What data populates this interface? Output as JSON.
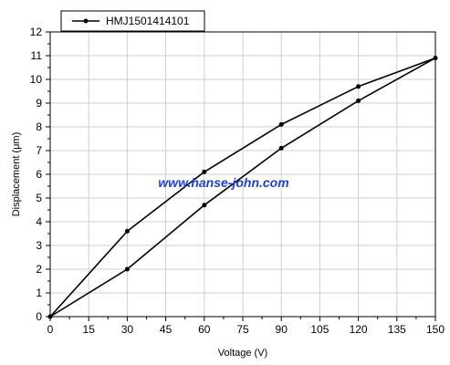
{
  "chart_data": {
    "type": "line",
    "xlabel": "Voltage (V)",
    "ylabel": "Displacement (μm)",
    "xlim": [
      0,
      150
    ],
    "ylim": [
      0,
      12
    ],
    "x_ticks": [
      0,
      15,
      30,
      45,
      60,
      75,
      90,
      105,
      120,
      135,
      150
    ],
    "y_ticks": [
      0,
      1,
      2,
      3,
      4,
      5,
      6,
      7,
      8,
      9,
      10,
      11,
      12
    ],
    "grid": true,
    "legend_position": "top-left",
    "series": [
      {
        "name": "HMJ1501414101",
        "x": [
          0,
          30,
          60,
          90,
          120,
          150,
          120,
          90,
          60,
          30,
          0
        ],
        "y": [
          0,
          2.0,
          4.7,
          7.1,
          9.1,
          10.9,
          9.7,
          8.1,
          6.1,
          3.6,
          0
        ],
        "color": "#000000"
      }
    ],
    "annotation": {
      "text": "www.hanse-john.com",
      "color": "#1f3fd8"
    }
  }
}
